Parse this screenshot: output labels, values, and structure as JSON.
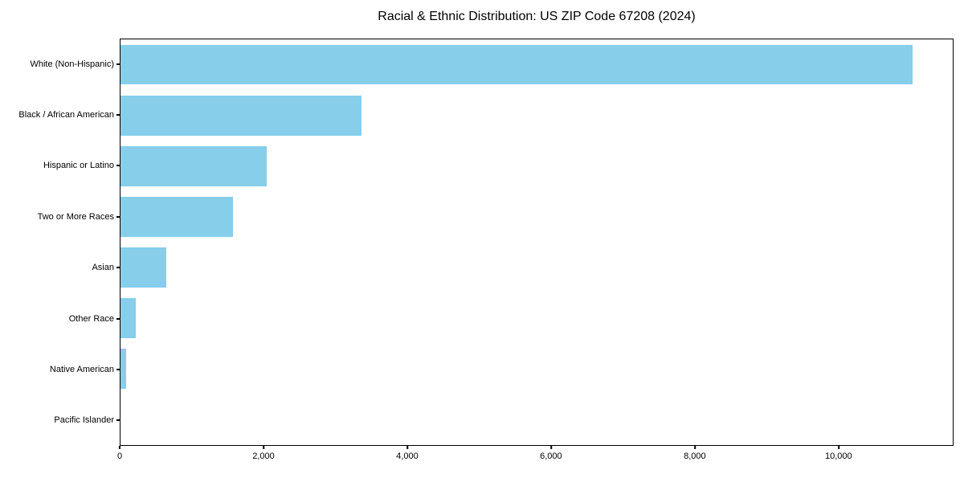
{
  "title": "Racial & Ethnic Distribution: US ZIP Code 67208 (2024)",
  "colors": {
    "bar": "#87CEEB",
    "axis": "#000000",
    "background": "#FFFFFF"
  },
  "chart_data": {
    "type": "bar",
    "orientation": "horizontal",
    "title": "Racial & Ethnic Distribution: US ZIP Code 67208 (2024)",
    "categories": [
      "White (Non-Hispanic)",
      "Black / African American",
      "Hispanic or Latino",
      "Two or More Races",
      "Asian",
      "Other Race",
      "Native American",
      "Pacific Islander"
    ],
    "values": [
      11040,
      3355,
      2035,
      1565,
      640,
      210,
      80,
      0
    ],
    "xlabel": "",
    "ylabel": "",
    "xlim": [
      0,
      11600
    ],
    "xticks": [
      0,
      2000,
      4000,
      6000,
      8000,
      10000
    ],
    "xtick_labels": [
      "0",
      "2,000",
      "4,000",
      "6,000",
      "8,000",
      "10,000"
    ],
    "bar_color": "#87CEEB",
    "grid": false,
    "legend": null
  }
}
